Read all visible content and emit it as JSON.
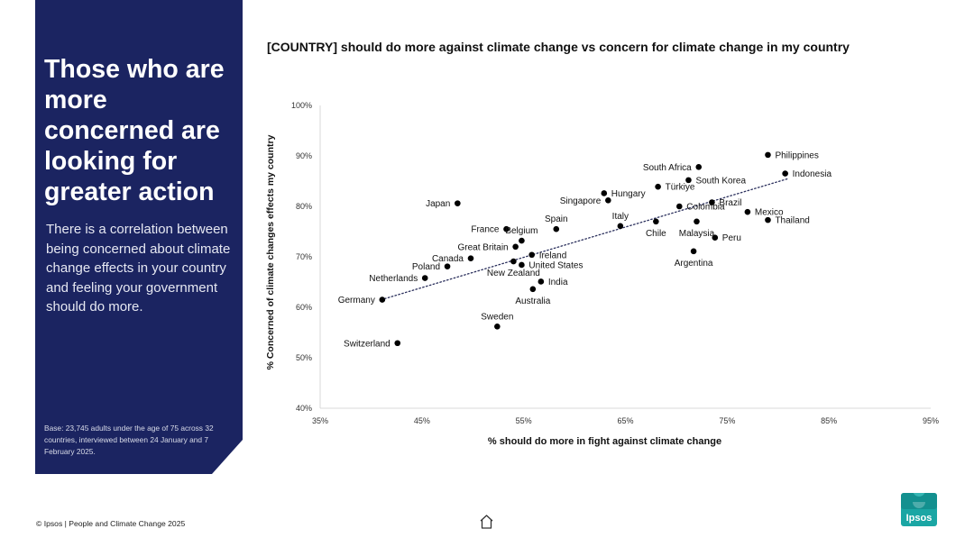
{
  "panel": {
    "headline": "Those who are more concerned are looking for greater action",
    "body": "There is a correlation between being concerned about climate change effects in your country and feeling your government should do more.",
    "base_note": "Base: 23,745 adults under the age of 75 across 32 countries, interviewed between 24 January and 7 February 2025."
  },
  "footer": {
    "text": "© Ipsos | People and Climate Change 2025"
  },
  "logo": {
    "text": "Ipsos",
    "color": "#1aa6a4"
  },
  "icons": {
    "home": "home-icon"
  },
  "colors": {
    "panel_bg": "#1b2461",
    "marker": "#000000"
  },
  "chart_data": {
    "type": "scatter",
    "title": "[COUNTRY] should do more against climate change vs concern for climate change in my country",
    "xlabel": "% should do more in fight against climate change",
    "ylabel": "% Concerned of climate changes effects my country",
    "xlim": [
      35,
      95
    ],
    "ylim": [
      40,
      100
    ],
    "x_ticks": [
      "35%",
      "45%",
      "55%",
      "65%",
      "75%",
      "85%",
      "95%"
    ],
    "y_ticks": [
      "40%",
      "50%",
      "60%",
      "70%",
      "80%",
      "90%",
      "100%"
    ],
    "grid": false,
    "trendline": {
      "style": "dotted",
      "from": [
        41.0,
        61.5
      ],
      "to": [
        81.0,
        85.5
      ]
    },
    "points": [
      {
        "label": "Philippines",
        "x": 79.0,
        "y": 90.2,
        "side": "right"
      },
      {
        "label": "Indonesia",
        "x": 80.7,
        "y": 86.5,
        "side": "right"
      },
      {
        "label": "South Africa",
        "x": 72.2,
        "y": 87.8,
        "side": "left"
      },
      {
        "label": "South Korea",
        "x": 71.2,
        "y": 85.2,
        "side": "right"
      },
      {
        "label": "Türkiye",
        "x": 68.2,
        "y": 83.9,
        "side": "right"
      },
      {
        "label": "Hungary",
        "x": 62.9,
        "y": 82.6,
        "side": "right"
      },
      {
        "label": "Singapore",
        "x": 63.3,
        "y": 81.2,
        "side": "left"
      },
      {
        "label": "Brazil",
        "x": 73.5,
        "y": 80.8,
        "side": "right"
      },
      {
        "label": "Colombia",
        "x": 70.3,
        "y": 80.0,
        "side": "right"
      },
      {
        "label": "Mexico",
        "x": 77.0,
        "y": 78.9,
        "side": "right"
      },
      {
        "label": "Japan",
        "x": 48.5,
        "y": 80.6,
        "side": "left"
      },
      {
        "label": "Italy",
        "x": 64.5,
        "y": 76.1,
        "side": "above"
      },
      {
        "label": "Chile",
        "x": 68.0,
        "y": 77.0,
        "side": "below"
      },
      {
        "label": "Malaysia",
        "x": 72.0,
        "y": 77.0,
        "side": "below"
      },
      {
        "label": "Thailand",
        "x": 79.0,
        "y": 77.3,
        "side": "right"
      },
      {
        "label": "Peru",
        "x": 73.8,
        "y": 73.8,
        "side": "right"
      },
      {
        "label": "Argentina",
        "x": 71.7,
        "y": 71.1,
        "side": "below"
      },
      {
        "label": "Spain",
        "x": 58.2,
        "y": 75.5,
        "side": "above"
      },
      {
        "label": "France",
        "x": 53.3,
        "y": 75.5,
        "side": "left"
      },
      {
        "label": "Belgium",
        "x": 54.8,
        "y": 73.2,
        "side": "above"
      },
      {
        "label": "Great Britain",
        "x": 54.2,
        "y": 72.0,
        "side": "left"
      },
      {
        "label": "Ireland",
        "x": 55.8,
        "y": 70.4,
        "side": "right"
      },
      {
        "label": "Canada",
        "x": 49.8,
        "y": 69.7,
        "side": "left"
      },
      {
        "label": "United States",
        "x": 54.8,
        "y": 68.4,
        "side": "right"
      },
      {
        "label": "Poland",
        "x": 47.5,
        "y": 68.1,
        "side": "left"
      },
      {
        "label": "New Zealand",
        "x": 54.0,
        "y": 69.1,
        "side": "below"
      },
      {
        "label": "India",
        "x": 56.7,
        "y": 65.1,
        "side": "right"
      },
      {
        "label": "Netherlands",
        "x": 45.3,
        "y": 65.8,
        "side": "left"
      },
      {
        "label": "Australia",
        "x": 55.9,
        "y": 63.6,
        "side": "below"
      },
      {
        "label": "Germany",
        "x": 41.1,
        "y": 61.5,
        "side": "left"
      },
      {
        "label": "Sweden",
        "x": 52.4,
        "y": 56.2,
        "side": "above"
      },
      {
        "label": "Switzerland",
        "x": 42.6,
        "y": 52.9,
        "side": "left"
      }
    ]
  }
}
